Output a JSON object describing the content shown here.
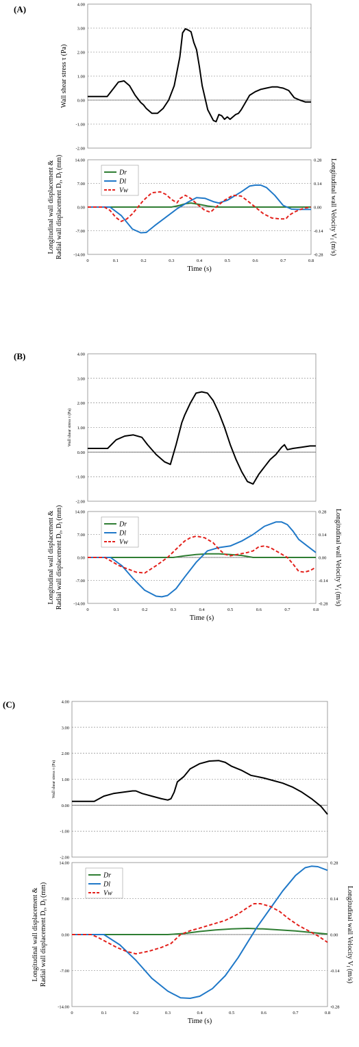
{
  "panels": [
    {
      "label": "(A)"
    },
    {
      "label": "(B)"
    },
    {
      "label": "(C)"
    }
  ],
  "chart_data": [
    {
      "panel": "(A)",
      "type": "line",
      "ylabel": "Wall shear stress τ (Pa)",
      "ylim": [
        -2,
        4
      ],
      "yticks": [
        "4.00",
        "3.00",
        "2.00",
        "1.00",
        "0.00",
        "-1.00",
        "-2.00"
      ],
      "grid": true,
      "series": [
        {
          "color": "#000000",
          "x": [
            0,
            0.07,
            0.09,
            0.11,
            0.13,
            0.15,
            0.17,
            0.19,
            0.2,
            0.21,
            0.23,
            0.25,
            0.27,
            0.29,
            0.31,
            0.33,
            0.34,
            0.35,
            0.36,
            0.37,
            0.38,
            0.39,
            0.4,
            0.41,
            0.43,
            0.45,
            0.46,
            0.47,
            0.48,
            0.49,
            0.5,
            0.51,
            0.52,
            0.53,
            0.54,
            0.55,
            0.56,
            0.58,
            0.6,
            0.62,
            0.64,
            0.66,
            0.68,
            0.69,
            0.7,
            0.72,
            0.74,
            0.76,
            0.78,
            0.8
          ],
          "y": [
            0.15,
            0.15,
            0.45,
            0.75,
            0.8,
            0.6,
            0.2,
            -0.1,
            -0.2,
            -0.35,
            -0.55,
            -0.55,
            -0.35,
            0.0,
            0.6,
            1.8,
            2.8,
            2.97,
            2.92,
            2.85,
            2.4,
            2.1,
            1.4,
            0.6,
            -0.4,
            -0.85,
            -0.9,
            -0.6,
            -0.65,
            -0.8,
            -0.7,
            -0.8,
            -0.7,
            -0.6,
            -0.55,
            -0.4,
            -0.2,
            0.2,
            0.35,
            0.45,
            0.5,
            0.55,
            0.55,
            0.52,
            0.5,
            0.4,
            0.1,
            0.0,
            -0.08,
            -0.08
          ]
        }
      ]
    },
    {
      "panel": "(A)",
      "type": "line",
      "xlabel": "Time (s)",
      "ylabel": "Longitudinal wall displacement & Radial wall displacement D_r, D_l (mm)",
      "ylabel_line1": "Longitudinal wall displacement &",
      "ylabel_line2": "Radial wall displacement D",
      "ylabel_sub1": "r",
      "ylabel_sep": ", D",
      "ylabel_sub2": "l",
      "ylabel_unit": " (mm)",
      "y2label": "Longitudinal wall Velocity V_l (m/s)",
      "y2label_main": "Longitudinal wall Velocity V",
      "y2label_sub": "l",
      "y2label_unit": " (m/s)",
      "xlim": [
        0,
        0.8
      ],
      "xticks": [
        "0",
        "0.1",
        "0.2",
        "0.3",
        "0.4",
        "0.5",
        "0.6",
        "0.7",
        "0.8"
      ],
      "ylim": [
        -14,
        14
      ],
      "yticks": [
        "14.00",
        "7.00",
        "0.00",
        "-7.00",
        "-14.00"
      ],
      "y2lim": [
        -0.28,
        0.28
      ],
      "y2ticks": [
        "0.28",
        "0.14",
        "0.00",
        "-0.14",
        "-0.28"
      ],
      "grid": true,
      "legend": "top-left",
      "series": [
        {
          "name": "Dr",
          "color": "#2e7d32",
          "axis": "left",
          "x": [
            0,
            0.3,
            0.33,
            0.35,
            0.37,
            0.4,
            0.43,
            0.46,
            0.8
          ],
          "y": [
            0,
            0,
            0.5,
            1.0,
            1.2,
            0.8,
            0.3,
            0,
            0
          ]
        },
        {
          "name": "Dl",
          "color": "#1f78c8",
          "axis": "left",
          "x": [
            0,
            0.08,
            0.12,
            0.16,
            0.19,
            0.21,
            0.24,
            0.28,
            0.32,
            0.36,
            0.39,
            0.42,
            0.45,
            0.47,
            0.5,
            0.55,
            0.58,
            0.6,
            0.62,
            0.64,
            0.67,
            0.7,
            0.73,
            0.75,
            0.8
          ],
          "y": [
            0,
            0,
            -2.5,
            -6.5,
            -7.6,
            -7.5,
            -5.5,
            -3,
            -0.5,
            1.5,
            2.8,
            2.6,
            1.6,
            1.2,
            2,
            4.5,
            6.2,
            6.5,
            6.5,
            5.8,
            3.5,
            0.5,
            -0.6,
            -0.7,
            -0.7
          ]
        },
        {
          "name": "Vw",
          "color": "#e3201b",
          "axis": "right",
          "x": [
            0,
            0.06,
            0.08,
            0.1,
            0.12,
            0.14,
            0.16,
            0.18,
            0.2,
            0.23,
            0.26,
            0.28,
            0.3,
            0.32,
            0.33,
            0.35,
            0.37,
            0.39,
            0.42,
            0.44,
            0.46,
            0.49,
            0.52,
            0.55,
            0.57,
            0.6,
            0.63,
            0.66,
            0.69,
            0.71,
            0.72,
            0.74,
            0.76,
            0.78,
            0.8
          ],
          "y": [
            0,
            0,
            -0.02,
            -0.06,
            -0.085,
            -0.07,
            -0.04,
            0.0,
            0.04,
            0.085,
            0.09,
            0.075,
            0.045,
            0.025,
            0.05,
            0.07,
            0.05,
            0.02,
            -0.02,
            -0.03,
            0.0,
            0.04,
            0.07,
            0.065,
            0.04,
            0.0,
            -0.04,
            -0.065,
            -0.07,
            -0.07,
            -0.05,
            -0.03,
            -0.015,
            -0.005,
            0.0
          ]
        }
      ]
    },
    {
      "panel": "(B)",
      "type": "line",
      "ylabel": "Wall shear stress τ (Pa)",
      "ylim": [
        -2,
        4
      ],
      "yticks": [
        "4.00",
        "3.00",
        "2.00",
        "1.00",
        "0.00",
        "-1.00",
        "-2.00"
      ],
      "grid": true,
      "series": [
        {
          "color": "#000000",
          "x": [
            0,
            0.07,
            0.1,
            0.13,
            0.16,
            0.19,
            0.21,
            0.24,
            0.27,
            0.29,
            0.31,
            0.33,
            0.34,
            0.36,
            0.38,
            0.4,
            0.42,
            0.44,
            0.46,
            0.48,
            0.5,
            0.52,
            0.54,
            0.56,
            0.58,
            0.59,
            0.6,
            0.62,
            0.64,
            0.66,
            0.67,
            0.68,
            0.69,
            0.7,
            0.72,
            0.75,
            0.78,
            0.8
          ],
          "y": [
            0.15,
            0.15,
            0.5,
            0.65,
            0.7,
            0.6,
            0.3,
            -0.1,
            -0.4,
            -0.5,
            0.3,
            1.2,
            1.5,
            2.0,
            2.4,
            2.45,
            2.4,
            2.1,
            1.6,
            1.0,
            0.3,
            -0.3,
            -0.8,
            -1.2,
            -1.3,
            -1.1,
            -0.9,
            -0.6,
            -0.3,
            -0.1,
            0.05,
            0.2,
            0.3,
            0.1,
            0.15,
            0.2,
            0.25,
            0.25
          ]
        }
      ]
    },
    {
      "panel": "(B)",
      "type": "line",
      "xlabel": "Time (s)",
      "ylabel": "Longitudinal wall displacement & Radial wall displacement D_r, D_l (mm)",
      "ylabel_line1": "Longitudinal wall displacement &",
      "ylabel_line2": "Radial wall displacement D",
      "ylabel_sub1": "r",
      "ylabel_sep": ", D",
      "ylabel_sub2": "l",
      "ylabel_unit": " (mm)",
      "y2label": "Longitudinal wall Velocity V_l (m/s)",
      "y2label_main": "Longitudinal wall Velocity V",
      "y2label_sub": "l",
      "y2label_unit": " (m/s)",
      "xlim": [
        0,
        0.8
      ],
      "xticks": [
        "0",
        "0.1",
        "0.2",
        "0.3",
        "0.4",
        "0.5",
        "0.6",
        "0.7",
        "0.8"
      ],
      "ylim": [
        -14,
        14
      ],
      "yticks": [
        "14.00",
        "7.00",
        "0.00",
        "-7.00",
        "-14.00"
      ],
      "y2lim": [
        -0.28,
        0.28
      ],
      "y2ticks": [
        "0.28",
        "0.14",
        "0.00",
        "-0.14",
        "-0.28"
      ],
      "grid": true,
      "legend": "top-left",
      "series": [
        {
          "name": "Dr",
          "color": "#2e7d32",
          "axis": "left",
          "x": [
            0,
            0.3,
            0.34,
            0.38,
            0.42,
            0.46,
            0.5,
            0.54,
            0.58,
            0.8
          ],
          "y": [
            0,
            0,
            0.5,
            0.9,
            1.1,
            1.1,
            0.9,
            0.6,
            0,
            0
          ]
        },
        {
          "name": "Dl",
          "color": "#1f78c8",
          "axis": "left",
          "x": [
            0,
            0.08,
            0.12,
            0.16,
            0.2,
            0.24,
            0.26,
            0.28,
            0.31,
            0.34,
            0.38,
            0.42,
            0.46,
            0.5,
            0.54,
            0.58,
            0.62,
            0.66,
            0.68,
            0.7,
            0.72,
            0.74,
            0.77,
            0.8
          ],
          "y": [
            0,
            0,
            -2.5,
            -6.5,
            -10,
            -11.8,
            -12,
            -11.6,
            -9.5,
            -6,
            -1.5,
            2,
            3,
            3.5,
            5,
            7,
            9.5,
            10.8,
            10.8,
            10,
            8,
            5.5,
            3.5,
            1.5
          ]
        },
        {
          "name": "Vw",
          "color": "#e3201b",
          "axis": "right",
          "x": [
            0,
            0.06,
            0.08,
            0.11,
            0.14,
            0.17,
            0.2,
            0.24,
            0.28,
            0.31,
            0.34,
            0.36,
            0.38,
            0.41,
            0.44,
            0.46,
            0.48,
            0.5,
            0.53,
            0.56,
            0.58,
            0.6,
            0.62,
            0.64,
            0.67,
            0.7,
            0.72,
            0.74,
            0.76,
            0.78,
            0.8
          ],
          "y": [
            0,
            0,
            -0.02,
            -0.05,
            -0.07,
            -0.09,
            -0.095,
            -0.05,
            0.0,
            0.05,
            0.1,
            0.12,
            0.13,
            0.12,
            0.09,
            0.05,
            0.02,
            0.01,
            0.02,
            0.03,
            0.04,
            0.065,
            0.07,
            0.06,
            0.03,
            0.0,
            -0.04,
            -0.085,
            -0.09,
            -0.08,
            -0.06
          ]
        }
      ]
    },
    {
      "panel": "(C)",
      "type": "line",
      "ylabel": "Wall shear stress τ (Pa)",
      "ylim": [
        -2,
        4
      ],
      "yticks": [
        "4.00",
        "3.00",
        "2.00",
        "1.00",
        "0.00",
        "-1.00",
        "-2.00"
      ],
      "grid": true,
      "series": [
        {
          "color": "#000000",
          "x": [
            0,
            0.07,
            0.1,
            0.13,
            0.16,
            0.19,
            0.2,
            0.22,
            0.25,
            0.28,
            0.3,
            0.31,
            0.32,
            0.33,
            0.35,
            0.37,
            0.4,
            0.43,
            0.46,
            0.48,
            0.5,
            0.53,
            0.56,
            0.58,
            0.6,
            0.63,
            0.66,
            0.69,
            0.72,
            0.75,
            0.78,
            0.8
          ],
          "y": [
            0.15,
            0.15,
            0.35,
            0.45,
            0.5,
            0.55,
            0.55,
            0.45,
            0.35,
            0.25,
            0.2,
            0.25,
            0.5,
            0.9,
            1.1,
            1.4,
            1.6,
            1.7,
            1.72,
            1.65,
            1.5,
            1.35,
            1.15,
            1.1,
            1.05,
            0.95,
            0.85,
            0.7,
            0.5,
            0.25,
            -0.05,
            -0.35
          ]
        }
      ]
    },
    {
      "panel": "(C)",
      "type": "line",
      "xlabel": "Time (s)",
      "ylabel": "Longitudinal wall displacement & Radial wall displacement D_r, D_l (mm)",
      "ylabel_line1": "Longitudinal wall displacement &",
      "ylabel_line2": "Radial wall displacement D",
      "ylabel_sub1": "r",
      "ylabel_sep": ", D",
      "ylabel_sub2": "l",
      "ylabel_unit": " (mm)",
      "y2label": "Longitudinal wall Velocity V_l (m/s)",
      "y2label_main": "Longitudinal wall Velocity V",
      "y2label_sub": "l",
      "y2label_unit": " (m/s)",
      "xlim": [
        0,
        0.8
      ],
      "xticks": [
        "0",
        "0.1",
        "0.2",
        "0.3",
        "0.4",
        "0.5",
        "0.6",
        "0.7",
        "0.8"
      ],
      "ylim": [
        -14,
        14
      ],
      "yticks": [
        "14.00",
        "7.00",
        "0.00",
        "-7.00",
        "-14.00"
      ],
      "y2lim": [
        -0.28,
        0.28
      ],
      "y2ticks": [
        "0.28",
        "0.14",
        "0.00",
        "-0.14",
        "-0.28"
      ],
      "grid": true,
      "legend": "top-left",
      "series": [
        {
          "name": "Dr",
          "color": "#2e7d32",
          "axis": "left",
          "x": [
            0,
            0.3,
            0.35,
            0.4,
            0.45,
            0.5,
            0.55,
            0.6,
            0.65,
            0.7,
            0.75,
            0.8
          ],
          "y": [
            0,
            0,
            0.2,
            0.6,
            0.9,
            1.1,
            1.2,
            1.1,
            0.9,
            0.7,
            0.4,
            0.1
          ]
        },
        {
          "name": "Dl",
          "color": "#1f78c8",
          "axis": "left",
          "x": [
            0,
            0.1,
            0.15,
            0.2,
            0.25,
            0.3,
            0.34,
            0.37,
            0.4,
            0.44,
            0.48,
            0.52,
            0.55,
            0.58,
            0.62,
            0.66,
            0.7,
            0.73,
            0.75,
            0.77,
            0.8
          ],
          "y": [
            0,
            0,
            -2,
            -5,
            -8.5,
            -11,
            -12.3,
            -12.4,
            -12,
            -10.5,
            -8,
            -4.5,
            -1.5,
            1.5,
            5,
            8.5,
            11.5,
            13,
            13.3,
            13.2,
            12.5
          ]
        },
        {
          "name": "Vw",
          "color": "#e3201b",
          "axis": "right",
          "x": [
            0,
            0.06,
            0.08,
            0.11,
            0.14,
            0.17,
            0.2,
            0.24,
            0.28,
            0.31,
            0.34,
            0.37,
            0.4,
            0.44,
            0.48,
            0.52,
            0.55,
            0.57,
            0.59,
            0.62,
            0.65,
            0.68,
            0.71,
            0.74,
            0.77,
            0.8
          ],
          "y": [
            0,
            0,
            -0.01,
            -0.03,
            -0.05,
            -0.065,
            -0.075,
            -0.065,
            -0.05,
            -0.035,
            0.0,
            0.015,
            0.025,
            0.04,
            0.055,
            0.08,
            0.105,
            0.12,
            0.12,
            0.11,
            0.09,
            0.06,
            0.035,
            0.015,
            -0.005,
            -0.03
          ]
        }
      ]
    }
  ]
}
